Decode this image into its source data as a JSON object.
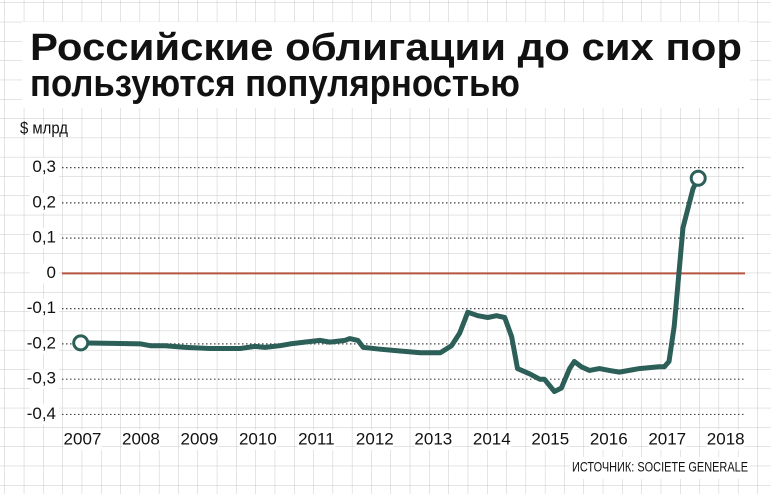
{
  "chart_data": {
    "type": "line",
    "title": [
      "Российские облигации до сих пор",
      "пользуются популярностью"
    ],
    "y_label": "$ млрд",
    "source": "ИСТОЧНИК: SOCIETE GENERALE",
    "x": [
      2006.97,
      2008.0,
      2008.16,
      2008.42,
      2008.76,
      2009.18,
      2009.7,
      2009.95,
      2010.12,
      2010.38,
      2010.55,
      2010.8,
      2011.06,
      2011.23,
      2011.49,
      2011.57,
      2011.71,
      2011.8,
      2012.09,
      2012.43,
      2012.78,
      2013.12,
      2013.31,
      2013.45,
      2013.59,
      2013.76,
      2013.93,
      2014.08,
      2014.22,
      2014.34,
      2014.44,
      2014.65,
      2014.82,
      2014.9,
      2015.07,
      2015.19,
      2015.33,
      2015.41,
      2015.53,
      2015.67,
      2015.84,
      2016.01,
      2016.18,
      2016.35,
      2016.52,
      2016.86,
      2016.95,
      2017.03,
      2017.12,
      2017.2,
      2017.27,
      2017.38,
      2017.44,
      2017.53
    ],
    "values": [
      -0.197,
      -0.2,
      -0.205,
      -0.205,
      -0.21,
      -0.213,
      -0.213,
      -0.207,
      -0.21,
      -0.205,
      -0.2,
      -0.195,
      -0.19,
      -0.195,
      -0.19,
      -0.185,
      -0.19,
      -0.21,
      -0.215,
      -0.22,
      -0.225,
      -0.225,
      -0.205,
      -0.17,
      -0.11,
      -0.12,
      -0.125,
      -0.12,
      -0.125,
      -0.18,
      -0.27,
      -0.285,
      -0.3,
      -0.3,
      -0.335,
      -0.325,
      -0.27,
      -0.25,
      -0.265,
      -0.275,
      -0.27,
      -0.275,
      -0.28,
      -0.275,
      -0.27,
      -0.265,
      -0.265,
      -0.25,
      -0.15,
      0.0,
      0.13,
      0.2,
      0.24,
      0.27
    ],
    "color": "#2d5f59",
    "zero_line_color": "#b5533c",
    "xlim": [
      2006.65,
      2018.33
    ],
    "xticks": [
      2007,
      2008,
      2009,
      2010,
      2011,
      2012,
      2013,
      2014,
      2015,
      2016,
      2017,
      2018
    ],
    "ylim": [
      -0.43,
      0.35
    ],
    "yticks": [
      {
        "value": 0.3,
        "label": "0,3"
      },
      {
        "value": 0.2,
        "label": "0,2"
      },
      {
        "value": 0.1,
        "label": "0,1"
      },
      0,
      {
        "value": -0.1,
        "label": "-0,1"
      },
      {
        "value": -0.2,
        "label": "-0,2"
      },
      {
        "value": -0.3,
        "label": "-0,3"
      },
      {
        "value": -0.4,
        "label": "-0,4"
      }
    ],
    "grid": true
  }
}
